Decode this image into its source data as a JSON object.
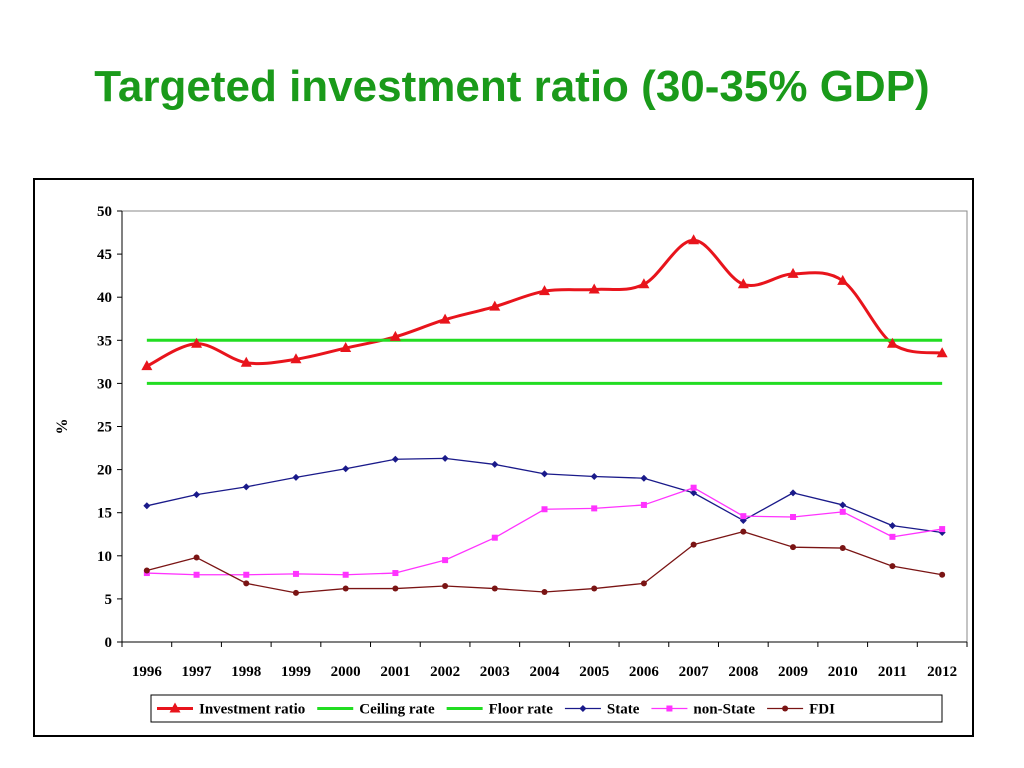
{
  "slide": {
    "title": "Targeted investment ratio (30-35% GDP)"
  },
  "colors": {
    "title": "#1a9a1a",
    "investment": "#e8141c",
    "ceiling": "#22dd22",
    "floor": "#22dd22",
    "state": "#1a1a8a",
    "nonstate": "#ff33ff",
    "fdi": "#7a1414"
  },
  "chart_data": {
    "type": "line",
    "title": "",
    "xlabel": "",
    "ylabel": "%",
    "ylim": [
      0,
      50
    ],
    "yticks": [
      "0",
      "5",
      "10",
      "15",
      "20",
      "25",
      "30",
      "35",
      "40",
      "45",
      "50"
    ],
    "categories": [
      "1996",
      "1997",
      "1998",
      "1999",
      "2000",
      "2001",
      "2002",
      "2003",
      "2004",
      "2005",
      "2006",
      "2007",
      "2008",
      "2009",
      "2010",
      "2011",
      "2012"
    ],
    "grid": false,
    "legend_position": "bottom",
    "series": [
      {
        "name": "Investment ratio",
        "key": "investment",
        "marker": "triangle",
        "smooth": true,
        "values": [
          32.0,
          34.6,
          32.4,
          32.8,
          34.1,
          35.4,
          37.4,
          38.9,
          40.7,
          40.9,
          41.5,
          46.6,
          41.5,
          42.7,
          41.9,
          34.6,
          33.5
        ]
      },
      {
        "name": "Ceiling rate",
        "key": "ceiling",
        "marker": "none",
        "smooth": false,
        "values": [
          35,
          35,
          35,
          35,
          35,
          35,
          35,
          35,
          35,
          35,
          35,
          35,
          35,
          35,
          35,
          35,
          35
        ]
      },
      {
        "name": "Floor rate",
        "key": "floor",
        "marker": "none",
        "smooth": false,
        "values": [
          30,
          30,
          30,
          30,
          30,
          30,
          30,
          30,
          30,
          30,
          30,
          30,
          30,
          30,
          30,
          30,
          30
        ]
      },
      {
        "name": "State",
        "key": "state",
        "marker": "diamond",
        "smooth": false,
        "values": [
          15.8,
          17.1,
          18.0,
          19.1,
          20.1,
          21.2,
          21.3,
          20.6,
          19.5,
          19.2,
          19.0,
          17.3,
          14.1,
          17.3,
          15.9,
          13.5,
          12.7
        ]
      },
      {
        "name": "non-State",
        "key": "nonstate",
        "marker": "square",
        "smooth": false,
        "values": [
          8.0,
          7.8,
          7.8,
          7.9,
          7.8,
          8.0,
          9.5,
          12.1,
          15.4,
          15.5,
          15.9,
          17.9,
          14.6,
          14.5,
          15.1,
          12.2,
          13.1
        ]
      },
      {
        "name": "FDI",
        "key": "fdi",
        "marker": "circle",
        "smooth": false,
        "values": [
          8.3,
          9.8,
          6.8,
          5.7,
          6.2,
          6.2,
          6.5,
          6.2,
          5.8,
          6.2,
          6.8,
          11.3,
          12.8,
          11.0,
          10.9,
          8.8,
          7.8
        ]
      }
    ]
  }
}
